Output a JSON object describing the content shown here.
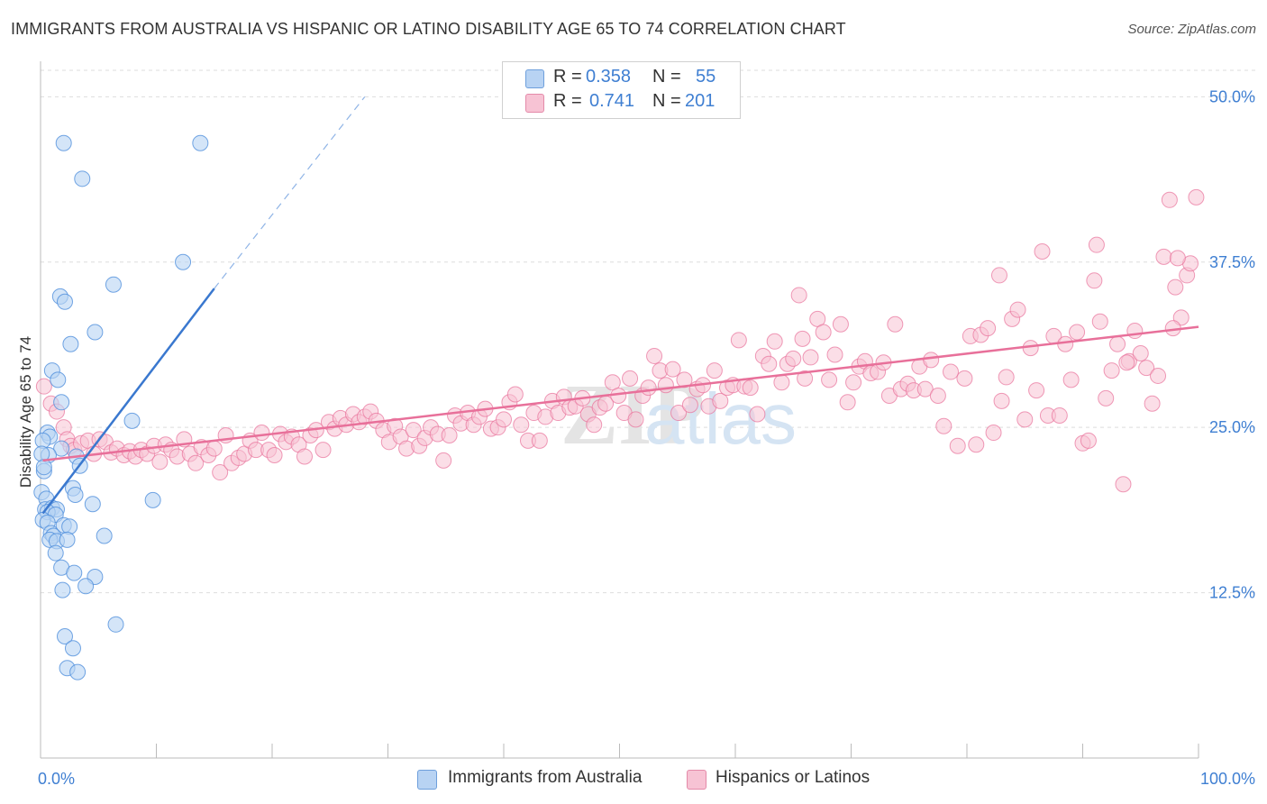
{
  "title": "IMMIGRANTS FROM AUSTRALIA VS HISPANIC OR LATINO DISABILITY AGE 65 TO 74 CORRELATION CHART",
  "source": "Source: ZipAtlas.com",
  "watermark": {
    "zip": "ZIP",
    "atlas": "atlas"
  },
  "colors": {
    "blue": "#4f8fdc",
    "blue_fill": "#b8d3f3",
    "pink": "#e8709a",
    "pink_fill": "#f7c3d4",
    "axis_text": "#3f7fd2",
    "grid": "#dddddd"
  },
  "legend": {
    "rows": [
      {
        "r_label": "R =",
        "r_value": "0.358",
        "n_label": "N =",
        "n_value": "55"
      },
      {
        "r_label": "R =",
        "r_value": "0.741",
        "n_label": "N =",
        "n_value": "201"
      }
    ]
  },
  "bottom_legend": {
    "series1": "Immigrants from Australia",
    "series2": "Hispanics or Latinos"
  },
  "chart_data": {
    "type": "scatter",
    "title": "IMMIGRANTS FROM AUSTRALIA VS HISPANIC OR LATINO DISABILITY AGE 65 TO 74 CORRELATION CHART",
    "xlabel": "",
    "ylabel": "Disability Age 65 to 74",
    "xlim": [
      0,
      100
    ],
    "ylim": [
      0,
      52
    ],
    "x_tick_labels": [
      "0.0%",
      "100.0%"
    ],
    "y_ticks": [
      12.5,
      25.0,
      37.5,
      50.0
    ],
    "y_tick_labels": [
      "12.5%",
      "25.0%",
      "37.5%",
      "50.0%"
    ],
    "grid": true,
    "series": [
      {
        "name": "Immigrants from Australia",
        "r": 0.358,
        "n": 55,
        "trend": {
          "x0": 0.2,
          "y0": 18.5,
          "x1": 15.0,
          "y1": 35.5,
          "dash_to_x": 28.0,
          "dash_to_y": 50.0
        },
        "points": [
          [
            2.0,
            46.5
          ],
          [
            13.8,
            46.5
          ],
          [
            3.6,
            43.8
          ],
          [
            12.3,
            37.5
          ],
          [
            1.7,
            34.9
          ],
          [
            6.3,
            35.8
          ],
          [
            2.1,
            34.5
          ],
          [
            2.6,
            31.3
          ],
          [
            4.7,
            32.2
          ],
          [
            1.0,
            29.3
          ],
          [
            1.5,
            28.6
          ],
          [
            1.8,
            26.9
          ],
          [
            7.9,
            25.5
          ],
          [
            0.6,
            24.6
          ],
          [
            0.8,
            24.3
          ],
          [
            1.8,
            23.4
          ],
          [
            0.2,
            24.0
          ],
          [
            0.7,
            22.9
          ],
          [
            3.1,
            22.8
          ],
          [
            3.4,
            22.1
          ],
          [
            0.3,
            21.7
          ],
          [
            2.8,
            20.4
          ],
          [
            0.1,
            20.1
          ],
          [
            0.5,
            19.6
          ],
          [
            3.0,
            19.9
          ],
          [
            4.5,
            19.2
          ],
          [
            9.7,
            19.5
          ],
          [
            0.4,
            18.8
          ],
          [
            1.0,
            18.9
          ],
          [
            1.4,
            18.8
          ],
          [
            0.6,
            18.6
          ],
          [
            1.3,
            18.4
          ],
          [
            0.2,
            18.0
          ],
          [
            0.6,
            17.8
          ],
          [
            2.0,
            17.6
          ],
          [
            2.5,
            17.5
          ],
          [
            0.9,
            17.0
          ],
          [
            1.1,
            16.8
          ],
          [
            5.5,
            16.8
          ],
          [
            0.8,
            16.5
          ],
          [
            1.4,
            16.4
          ],
          [
            2.3,
            16.5
          ],
          [
            1.3,
            15.5
          ],
          [
            1.8,
            14.4
          ],
          [
            2.9,
            14.0
          ],
          [
            4.7,
            13.7
          ],
          [
            3.9,
            13.0
          ],
          [
            1.9,
            12.7
          ],
          [
            6.5,
            10.1
          ],
          [
            2.1,
            9.2
          ],
          [
            2.8,
            8.3
          ],
          [
            2.3,
            6.8
          ],
          [
            3.2,
            6.5
          ],
          [
            0.1,
            23.0
          ],
          [
            0.3,
            22.0
          ]
        ]
      },
      {
        "name": "Hispanics or Latinos",
        "r": 0.741,
        "n": 201,
        "trend": {
          "x0": 0.2,
          "y0": 22.5,
          "x1": 100.0,
          "y1": 32.6
        },
        "points": [
          [
            0.3,
            28.1
          ],
          [
            0.9,
            26.8
          ],
          [
            1.4,
            26.2
          ],
          [
            2.0,
            25.0
          ],
          [
            2.3,
            24.1
          ],
          [
            2.6,
            23.6
          ],
          [
            2.9,
            23.3
          ],
          [
            3.5,
            23.8
          ],
          [
            4.1,
            24.0
          ],
          [
            4.6,
            23.0
          ],
          [
            5.1,
            24.1
          ],
          [
            5.6,
            23.9
          ],
          [
            6.1,
            23.1
          ],
          [
            6.6,
            23.4
          ],
          [
            7.2,
            22.9
          ],
          [
            7.7,
            23.2
          ],
          [
            8.2,
            22.8
          ],
          [
            8.7,
            23.3
          ],
          [
            9.2,
            23.0
          ],
          [
            9.8,
            23.6
          ],
          [
            10.3,
            22.4
          ],
          [
            10.8,
            23.7
          ],
          [
            11.3,
            23.3
          ],
          [
            11.8,
            22.8
          ],
          [
            12.4,
            24.1
          ],
          [
            12.9,
            23.0
          ],
          [
            13.4,
            22.3
          ],
          [
            13.9,
            23.5
          ],
          [
            14.5,
            22.9
          ],
          [
            15.0,
            23.4
          ],
          [
            15.5,
            21.6
          ],
          [
            16.0,
            24.4
          ],
          [
            16.5,
            22.3
          ],
          [
            17.1,
            22.7
          ],
          [
            17.6,
            23.0
          ],
          [
            18.1,
            24.0
          ],
          [
            18.6,
            23.3
          ],
          [
            19.1,
            24.6
          ],
          [
            19.7,
            23.3
          ],
          [
            20.2,
            22.9
          ],
          [
            20.7,
            24.5
          ],
          [
            21.2,
            23.9
          ],
          [
            21.7,
            24.3
          ],
          [
            22.3,
            23.7
          ],
          [
            22.8,
            22.8
          ],
          [
            23.3,
            24.4
          ],
          [
            23.8,
            24.8
          ],
          [
            24.4,
            23.3
          ],
          [
            24.9,
            25.4
          ],
          [
            25.4,
            24.9
          ],
          [
            25.9,
            25.7
          ],
          [
            26.4,
            25.2
          ],
          [
            27.0,
            26.0
          ],
          [
            27.5,
            25.4
          ],
          [
            28.0,
            25.8
          ],
          [
            28.5,
            26.2
          ],
          [
            29.0,
            25.5
          ],
          [
            29.6,
            24.8
          ],
          [
            30.1,
            23.9
          ],
          [
            30.6,
            25.1
          ],
          [
            31.1,
            24.3
          ],
          [
            31.6,
            23.4
          ],
          [
            32.2,
            24.8
          ],
          [
            32.7,
            23.6
          ],
          [
            33.2,
            24.2
          ],
          [
            33.7,
            25.0
          ],
          [
            34.3,
            24.5
          ],
          [
            34.8,
            22.5
          ],
          [
            35.3,
            24.4
          ],
          [
            35.8,
            25.9
          ],
          [
            36.3,
            25.3
          ],
          [
            36.9,
            26.1
          ],
          [
            37.4,
            25.2
          ],
          [
            37.9,
            25.8
          ],
          [
            38.4,
            26.4
          ],
          [
            38.9,
            24.9
          ],
          [
            39.5,
            25.0
          ],
          [
            40.0,
            25.6
          ],
          [
            40.5,
            26.9
          ],
          [
            41.0,
            27.5
          ],
          [
            41.5,
            25.2
          ],
          [
            42.1,
            24.0
          ],
          [
            42.6,
            26.1
          ],
          [
            43.1,
            24.0
          ],
          [
            43.6,
            25.8
          ],
          [
            44.2,
            27.0
          ],
          [
            44.7,
            26.1
          ],
          [
            45.2,
            27.3
          ],
          [
            45.7,
            26.5
          ],
          [
            46.2,
            26.6
          ],
          [
            46.8,
            27.2
          ],
          [
            47.3,
            26.0
          ],
          [
            47.8,
            25.2
          ],
          [
            48.3,
            26.5
          ],
          [
            48.8,
            26.8
          ],
          [
            49.4,
            28.4
          ],
          [
            49.9,
            27.4
          ],
          [
            50.4,
            26.1
          ],
          [
            50.9,
            28.7
          ],
          [
            51.4,
            25.6
          ],
          [
            52.0,
            27.4
          ],
          [
            52.5,
            28.0
          ],
          [
            53.0,
            30.4
          ],
          [
            53.5,
            29.3
          ],
          [
            54.0,
            28.2
          ],
          [
            54.6,
            29.4
          ],
          [
            55.1,
            26.1
          ],
          [
            55.6,
            28.6
          ],
          [
            56.1,
            26.7
          ],
          [
            56.7,
            27.9
          ],
          [
            57.2,
            28.2
          ],
          [
            57.7,
            26.6
          ],
          [
            58.2,
            29.3
          ],
          [
            58.7,
            27.0
          ],
          [
            59.3,
            28.0
          ],
          [
            59.8,
            28.2
          ],
          [
            60.3,
            31.6
          ],
          [
            60.8,
            28.1
          ],
          [
            61.3,
            28.0
          ],
          [
            61.9,
            26.0
          ],
          [
            62.4,
            30.4
          ],
          [
            62.9,
            29.8
          ],
          [
            63.4,
            31.5
          ],
          [
            64.0,
            28.4
          ],
          [
            64.5,
            29.8
          ],
          [
            65.0,
            30.2
          ],
          [
            65.5,
            35.0
          ],
          [
            66.0,
            28.7
          ],
          [
            66.5,
            30.3
          ],
          [
            67.1,
            33.2
          ],
          [
            67.6,
            32.2
          ],
          [
            68.1,
            28.6
          ],
          [
            68.6,
            30.5
          ],
          [
            69.1,
            32.8
          ],
          [
            69.7,
            26.9
          ],
          [
            70.2,
            28.4
          ],
          [
            70.7,
            29.6
          ],
          [
            71.2,
            30.0
          ],
          [
            71.7,
            29.1
          ],
          [
            72.3,
            29.2
          ],
          [
            72.8,
            29.9
          ],
          [
            73.3,
            27.4
          ],
          [
            73.8,
            32.8
          ],
          [
            74.3,
            27.9
          ],
          [
            74.9,
            28.3
          ],
          [
            75.4,
            27.8
          ],
          [
            75.9,
            29.6
          ],
          [
            76.4,
            27.9
          ],
          [
            76.9,
            30.1
          ],
          [
            77.5,
            27.4
          ],
          [
            78.0,
            25.1
          ],
          [
            78.6,
            29.2
          ],
          [
            79.2,
            23.6
          ],
          [
            79.8,
            28.7
          ],
          [
            80.3,
            31.9
          ],
          [
            80.8,
            23.7
          ],
          [
            81.2,
            32.0
          ],
          [
            81.8,
            32.5
          ],
          [
            82.3,
            24.6
          ],
          [
            82.8,
            36.5
          ],
          [
            83.4,
            28.8
          ],
          [
            83.9,
            33.2
          ],
          [
            84.4,
            33.9
          ],
          [
            85.0,
            25.6
          ],
          [
            85.5,
            31.0
          ],
          [
            86.0,
            27.8
          ],
          [
            86.5,
            38.3
          ],
          [
            87.0,
            25.9
          ],
          [
            87.5,
            31.9
          ],
          [
            88.0,
            25.9
          ],
          [
            88.5,
            31.3
          ],
          [
            89.0,
            28.6
          ],
          [
            89.5,
            32.2
          ],
          [
            90.0,
            23.8
          ],
          [
            90.5,
            24.0
          ],
          [
            91.0,
            36.1
          ],
          [
            91.5,
            33.0
          ],
          [
            92.0,
            27.2
          ],
          [
            92.5,
            29.3
          ],
          [
            93.0,
            31.3
          ],
          [
            93.5,
            20.7
          ],
          [
            94.0,
            30.0
          ],
          [
            94.5,
            32.3
          ],
          [
            95.0,
            30.6
          ],
          [
            95.5,
            29.5
          ],
          [
            96.0,
            26.8
          ],
          [
            96.5,
            28.9
          ],
          [
            97.0,
            37.9
          ],
          [
            97.5,
            42.2
          ],
          [
            98.0,
            35.6
          ],
          [
            98.5,
            33.3
          ],
          [
            99.0,
            36.5
          ],
          [
            99.3,
            37.4
          ],
          [
            99.8,
            42.4
          ],
          [
            98.2,
            37.8
          ],
          [
            97.8,
            32.5
          ],
          [
            93.8,
            29.9
          ],
          [
            91.2,
            38.8
          ],
          [
            83.0,
            27.0
          ],
          [
            65.8,
            31.7
          ]
        ]
      }
    ]
  }
}
